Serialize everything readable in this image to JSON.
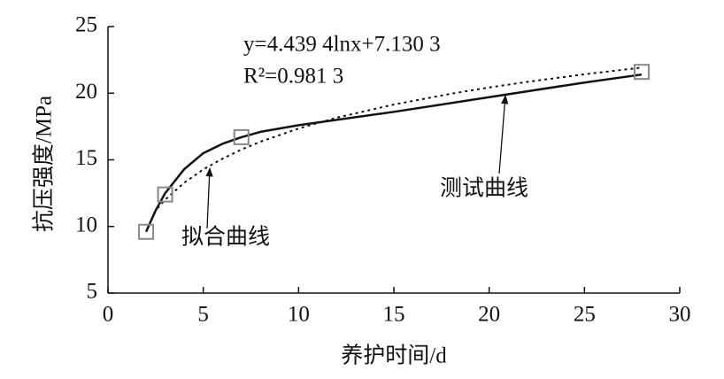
{
  "chart_data": {
    "type": "line",
    "x_label": "养护时间/d",
    "y_label": "抗压强度/MPa",
    "equation": "y=4.439 4lnx+7.130 3",
    "r_squared": "R²=0.981 3",
    "xlim": [
      0,
      30
    ],
    "xticks": [
      0,
      5,
      10,
      15,
      20,
      25,
      30
    ],
    "ylim": [
      5,
      25
    ],
    "yticks": [
      5,
      10,
      15,
      20,
      25
    ],
    "grid": false,
    "series": [
      {
        "name": "拟合曲线",
        "color": "#111111",
        "style": "dotted",
        "x": [
          2.6,
          3,
          4,
          5,
          6,
          7,
          8,
          10,
          12,
          15,
          18,
          20,
          22,
          25,
          28
        ],
        "values": [
          11.37,
          12.01,
          13.28,
          14.28,
          15.08,
          15.77,
          16.36,
          17.35,
          18.16,
          19.15,
          19.96,
          20.43,
          20.85,
          21.42,
          21.92
        ]
      },
      {
        "name": "测试曲线",
        "color": "#111111",
        "style": "solid",
        "x": [
          2,
          2.5,
          3,
          4,
          5,
          6,
          7,
          8,
          10,
          15,
          20,
          25,
          28
        ],
        "values": [
          9.6,
          11.2,
          12.5,
          14.3,
          15.5,
          16.2,
          16.7,
          17.1,
          17.6,
          18.6,
          19.7,
          20.8,
          21.4
        ]
      }
    ],
    "markers": {
      "color": "#888888",
      "x": [
        2,
        3,
        7,
        28
      ],
      "values": [
        9.6,
        12.4,
        16.7,
        21.6
      ]
    }
  }
}
